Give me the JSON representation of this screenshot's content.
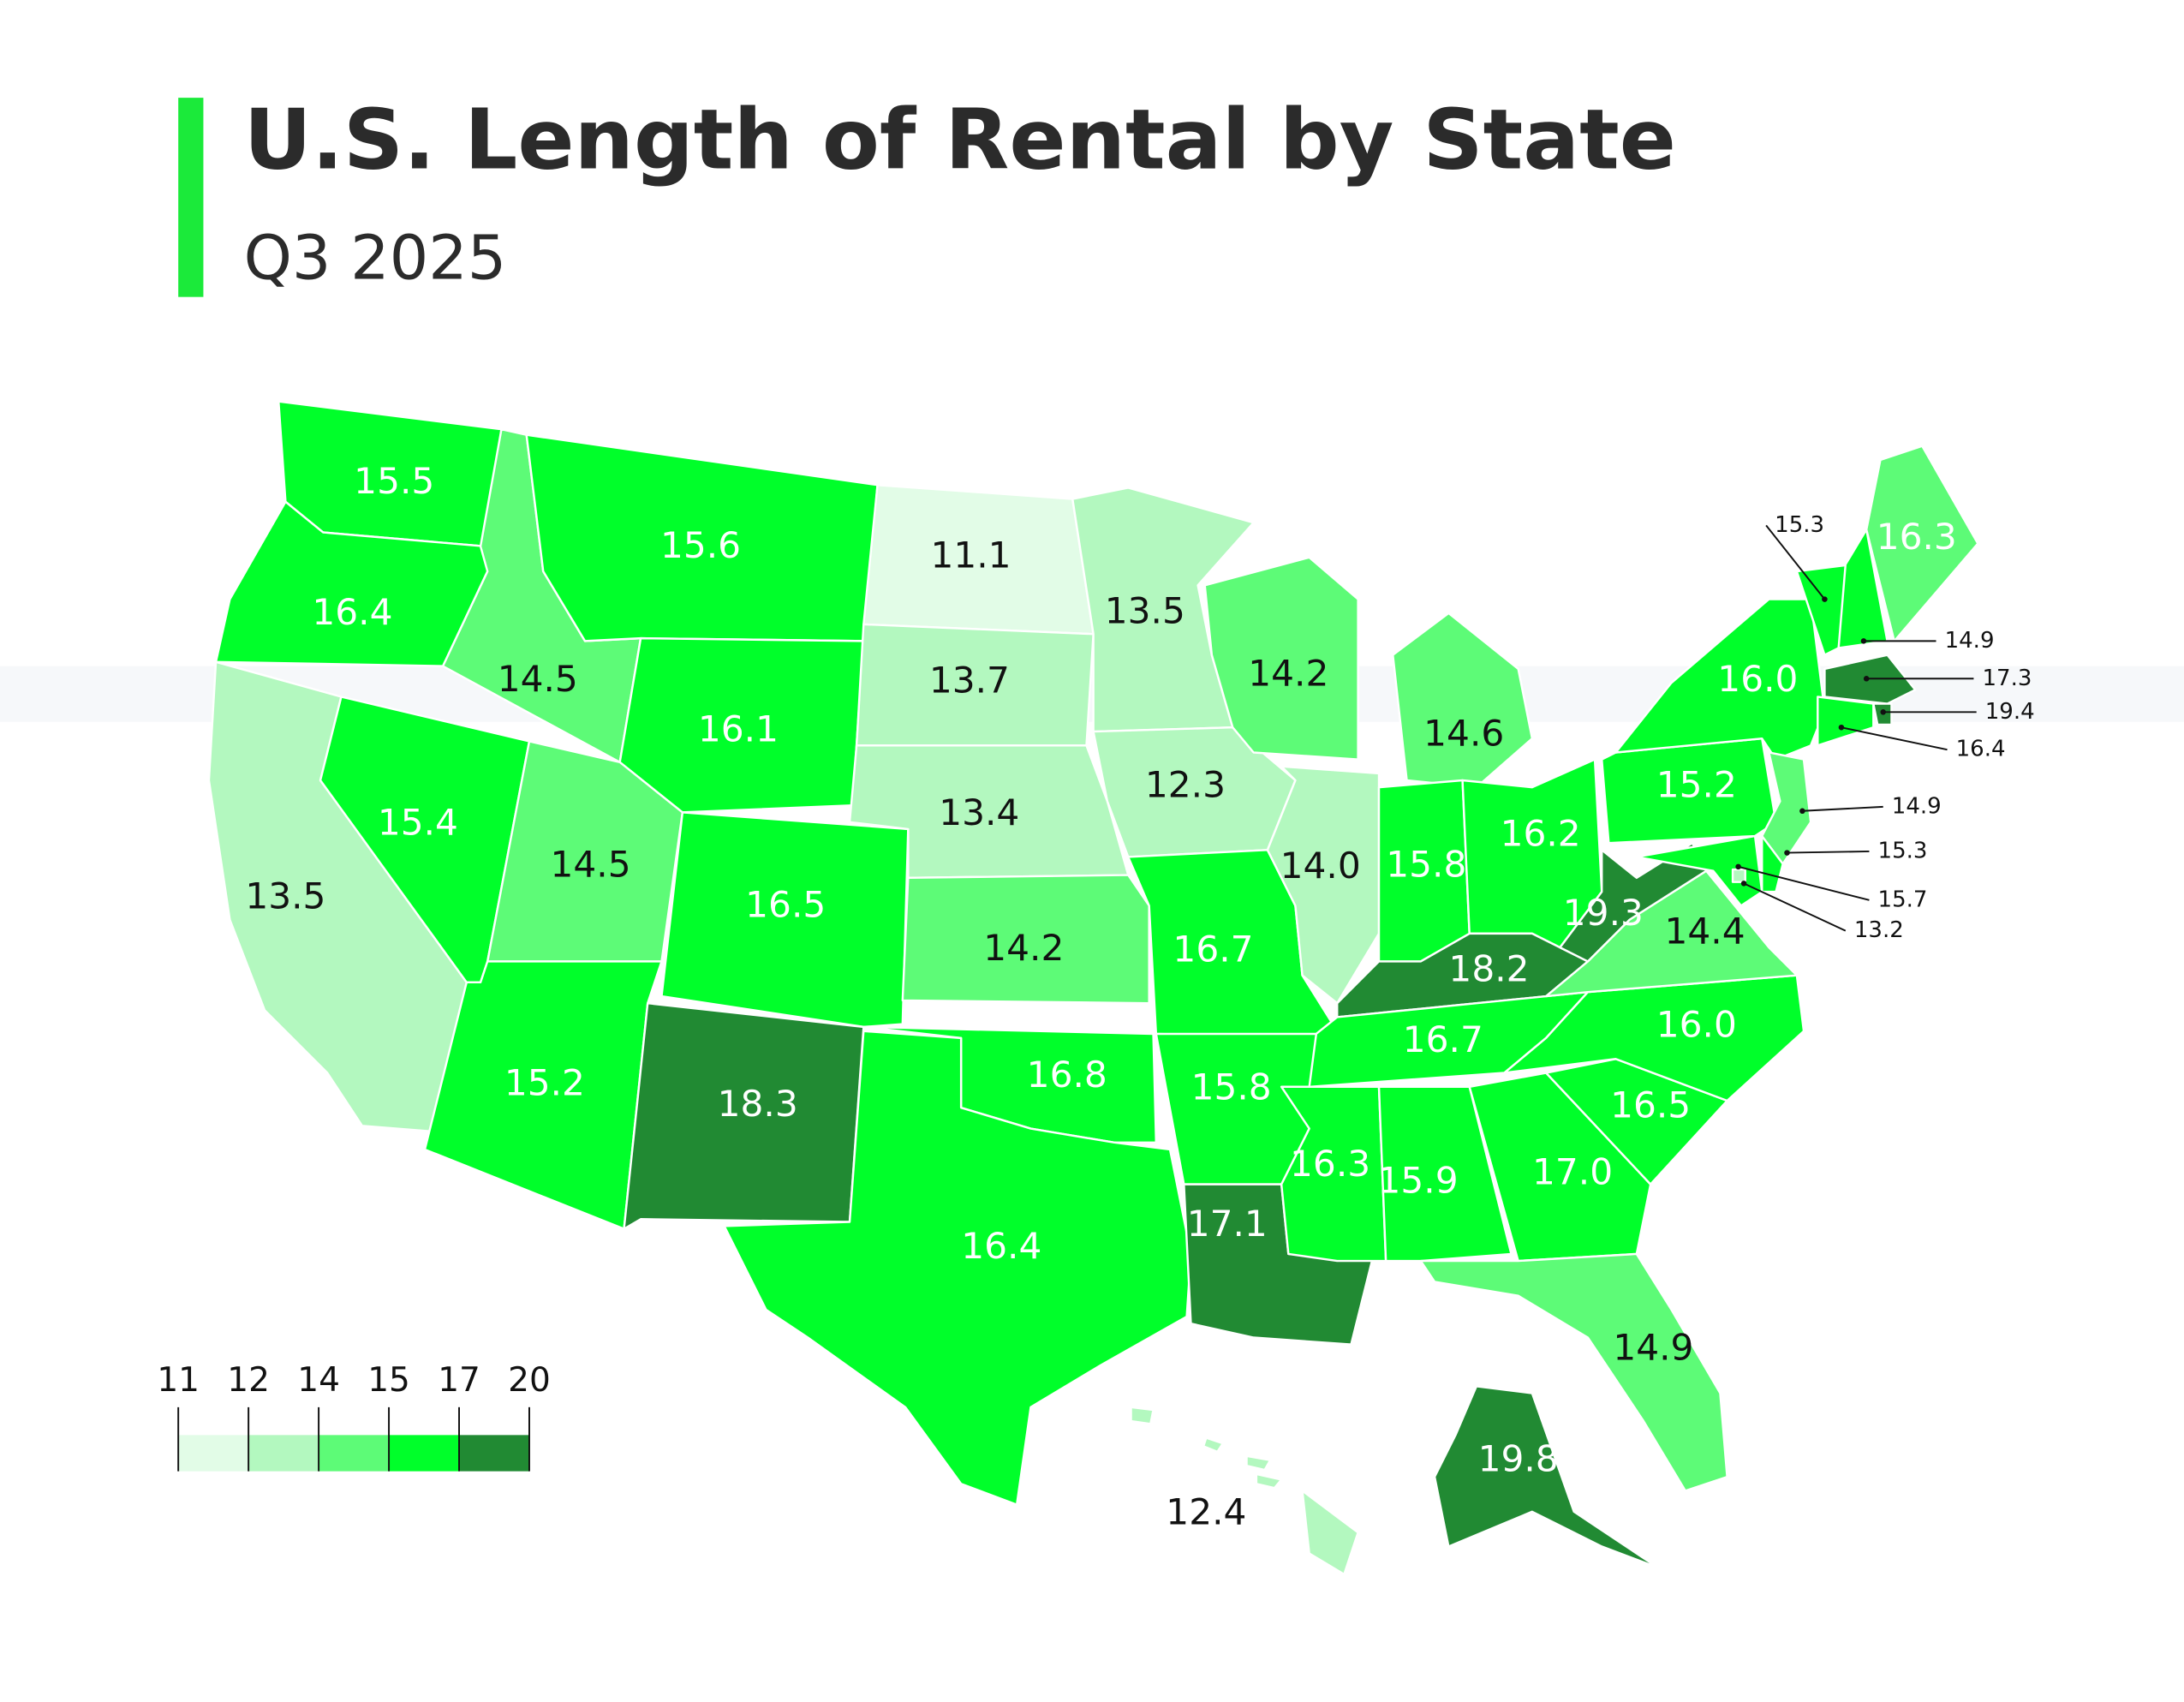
{
  "chart_data": {
    "type": "choropleth",
    "title": "U.S. Length of Rental by State",
    "subtitle": "Q3 2025",
    "values": [
      15.5,
      16.4,
      13.5,
      14.5,
      15.4,
      15.6,
      16.1,
      14.5,
      15.2,
      16.5,
      18.3,
      11.1,
      13.7,
      13.4,
      14.2,
      16.8,
      16.4,
      13.5,
      12.3,
      16.7,
      15.8,
      17.1,
      14.2,
      14.0,
      14.6,
      15.8,
      16.2,
      18.2,
      16.7,
      16.3,
      15.9,
      17.0,
      14.9,
      16.5,
      16.0,
      14.4,
      19.3,
      15.2,
      16.0,
      15.3,
      16.3,
      14.9,
      17.3,
      19.4,
      16.4,
      14.9,
      15.3,
      15.7,
      13.2,
      19.8,
      12.4
    ],
    "value_labels": [
      "15.5",
      "16.4",
      "13.5",
      "14.5",
      "15.4",
      "15.6",
      "16.1",
      "14.5",
      "15.2",
      "16.5",
      "18.3",
      "11.1",
      "13.7",
      "13.4",
      "14.2",
      "16.8",
      "16.4",
      "13.5",
      "12.3",
      "16.7",
      "15.8",
      "17.1",
      "14.2",
      "14.0",
      "14.6",
      "15.8",
      "16.2",
      "18.2",
      "16.7",
      "16.3",
      "15.9",
      "17.0",
      "14.9",
      "16.5",
      "16.0",
      "14.4",
      "19.3",
      "15.2",
      "16.0",
      "15.3",
      "16.3",
      "14.9",
      "17.3",
      "19.4",
      "16.4",
      "14.9",
      "15.3",
      "15.7",
      "13.2",
      "19.8",
      "12.4"
    ],
    "legend": {
      "ticks": [
        11,
        12,
        14,
        15,
        17,
        20
      ],
      "colors": [
        "#e2fce7",
        "#b3f8bf",
        "#5dfb77",
        "#00ff2a",
        "#218a33"
      ]
    }
  }
}
